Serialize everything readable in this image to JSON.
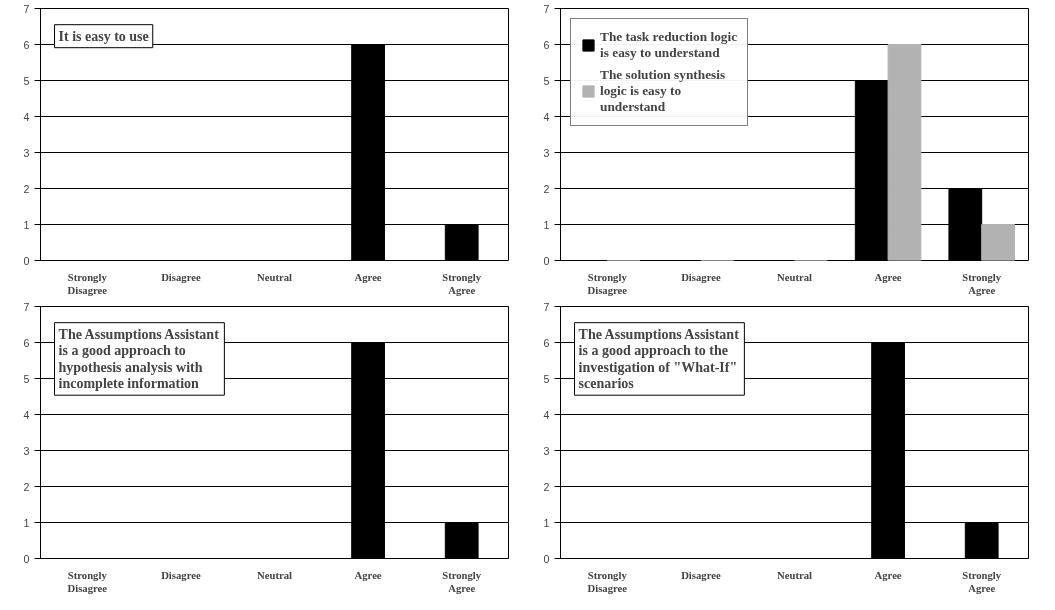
{
  "chart_data": [
    {
      "type": "bar",
      "title": "It is easy to use",
      "categories": [
        "Strongly Disagree",
        "Disagree",
        "Neutral",
        "Agree",
        "Strongly Agree"
      ],
      "series": [
        {
          "color": "#000000",
          "values": [
            0,
            0,
            0,
            6,
            1
          ]
        }
      ],
      "ylim": [
        0,
        7
      ],
      "yticks": [
        0,
        1,
        2,
        3,
        4,
        5,
        6,
        7
      ],
      "grid": "y",
      "legend": false
    },
    {
      "type": "bar",
      "categories": [
        "Strongly Disagree",
        "Disagree",
        "Neutral",
        "Agree",
        "Strongly Agree"
      ],
      "series": [
        {
          "name": "The task reduction logic is easy to understand",
          "color": "#000000",
          "values": [
            0,
            0,
            0,
            5,
            2
          ]
        },
        {
          "name": "The solution synthesis logic is easy to understand",
          "color": "#b2b2b2",
          "values": [
            0,
            0,
            0,
            6,
            1
          ]
        }
      ],
      "ylim": [
        0,
        7
      ],
      "yticks": [
        0,
        1,
        2,
        3,
        4,
        5,
        6,
        7
      ],
      "grid": "y",
      "legend": "top left"
    },
    {
      "type": "bar",
      "title": "The Assumptions Assistant is a good approach to hypothesis analysis with incomplete information",
      "categories": [
        "Strongly Disagree",
        "Disagree",
        "Neutral",
        "Agree",
        "Strongly Agree"
      ],
      "series": [
        {
          "color": "#000000",
          "values": [
            0,
            0,
            0,
            6,
            1
          ]
        }
      ],
      "ylim": [
        0,
        7
      ],
      "yticks": [
        0,
        1,
        2,
        3,
        4,
        5,
        6,
        7
      ],
      "grid": "y",
      "legend": false
    },
    {
      "type": "bar",
      "title": "The Assumptions Assistant is a good approach to the investigation of \"What-If\" scenarios",
      "categories": [
        "Strongly Disagree",
        "Disagree",
        "Neutral",
        "Agree",
        "Strongly Agree"
      ],
      "series": [
        {
          "color": "#000000",
          "values": [
            0,
            0,
            0,
            6,
            1
          ]
        }
      ],
      "ylim": [
        0,
        7
      ],
      "yticks": [
        0,
        1,
        2,
        3,
        4,
        5,
        6,
        7
      ],
      "grid": "y",
      "legend": false
    }
  ]
}
